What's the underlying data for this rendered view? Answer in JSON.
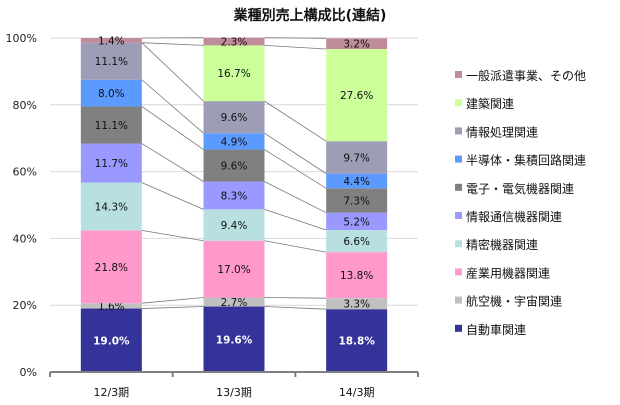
{
  "chart_data": {
    "type": "bar",
    "stacked": true,
    "title": "業種別売上構成比(連結)",
    "xlabel": "",
    "ylabel": "",
    "ylim": [
      0,
      100
    ],
    "yticks": [
      "0%",
      "20%",
      "40%",
      "60%",
      "80%",
      "100%"
    ],
    "grid": true,
    "legend_position": "right",
    "categories": [
      "12/3期",
      "13/3期",
      "14/3期"
    ],
    "series": [
      {
        "name": "自動車関連",
        "color": "#333399",
        "label_color": "#ffffff",
        "values": [
          19.0,
          19.6,
          18.8
        ],
        "labels": [
          "19.0%",
          "19.6%",
          "18.8%"
        ]
      },
      {
        "name": "航空機・宇宙関連",
        "color": "#c0c0c0",
        "label_color": "#111111",
        "values": [
          1.6,
          2.7,
          3.3
        ],
        "labels": [
          "1.6%",
          "2.7%",
          "3.3%"
        ]
      },
      {
        "name": "産業用機器関連",
        "color": "#ff99cc",
        "label_color": "#111111",
        "values": [
          21.8,
          17.0,
          13.8
        ],
        "labels": [
          "21.8%",
          "17.0%",
          "13.8%"
        ]
      },
      {
        "name": "精密機器関連",
        "color": "#b9e0e0",
        "label_color": "#111111",
        "values": [
          14.3,
          9.4,
          6.6
        ],
        "labels": [
          "14.3%",
          "9.4%",
          "6.6%"
        ]
      },
      {
        "name": "情報通信機器関連",
        "color": "#9999ff",
        "label_color": "#111111",
        "values": [
          11.7,
          8.3,
          5.2
        ],
        "labels": [
          "11.7%",
          "8.3%",
          "5.2%"
        ]
      },
      {
        "name": "電子・電気機器関連",
        "color": "#808080",
        "label_color": "#111111",
        "values": [
          11.1,
          9.6,
          7.3
        ],
        "labels": [
          "11.1%",
          "9.6%",
          "7.3%"
        ]
      },
      {
        "name": "半導体・集積回路関連",
        "color": "#5b9bff",
        "label_color": "#111111",
        "values": [
          8.0,
          4.9,
          4.4
        ],
        "labels": [
          "8.0%",
          "4.9%",
          "4.4%"
        ]
      },
      {
        "name": "情報処理関連",
        "color": "#9d9db5",
        "label_color": "#111111",
        "values": [
          11.1,
          9.6,
          9.7
        ],
        "labels": [
          "11.1%",
          "9.6%",
          "9.7%"
        ]
      },
      {
        "name": "建築関連",
        "color": "#ccff99",
        "label_color": "#111111",
        "values": [
          0,
          16.7,
          27.6
        ],
        "labels": [
          "",
          "16.7%",
          "27.6%"
        ]
      },
      {
        "name": "一般派遣事業、その他",
        "color": "#c08c9a",
        "label_color": "#111111",
        "values": [
          1.4,
          2.3,
          3.2
        ],
        "labels": [
          "1.4%",
          "2.3%",
          "3.2%"
        ]
      }
    ]
  }
}
